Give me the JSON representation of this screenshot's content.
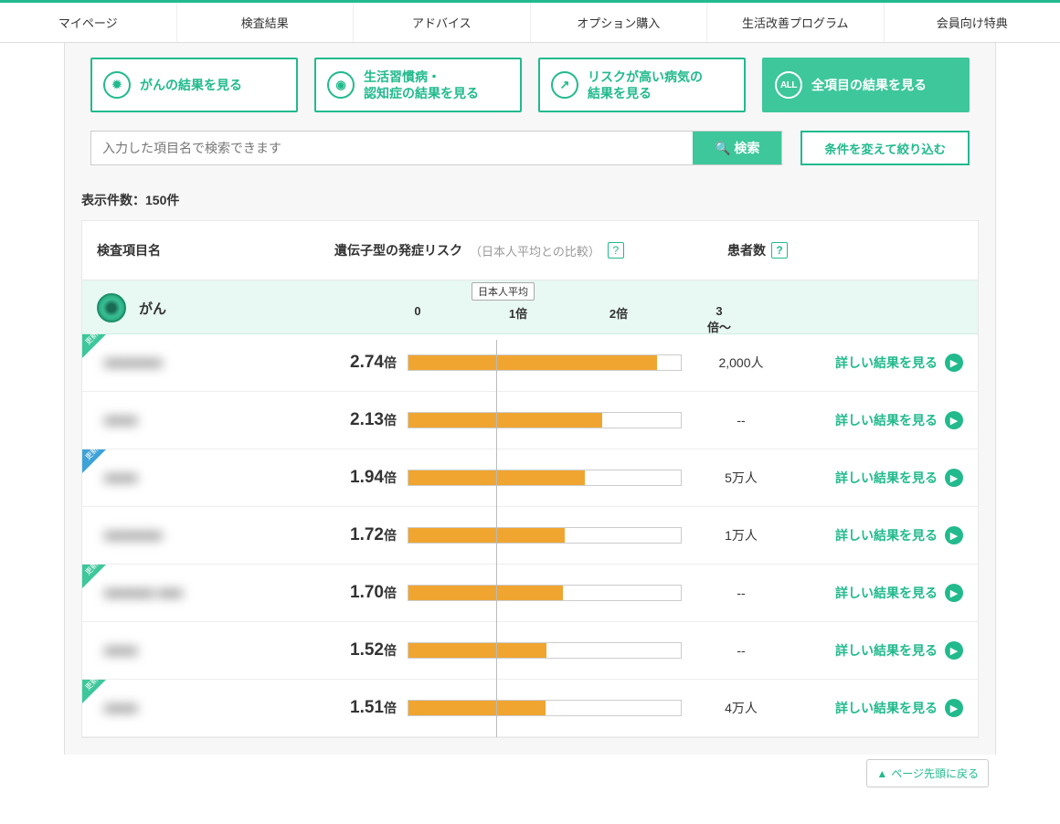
{
  "nav": [
    "マイページ",
    "検査結果",
    "アドバイス",
    "オプション購入",
    "生活改善プログラム",
    "会員向け特典"
  ],
  "buttons": {
    "cancer": "がんの結果を見る",
    "lifestyle": "生活習慣病・\n認知症の結果を見る",
    "highrisk": "リスクが高い病気の\n結果を見る",
    "all": "全項目の結果を見る",
    "search_placeholder": "入力した項目名で検索できます",
    "search": "検索",
    "filter": "条件を変えて絞り込む"
  },
  "count_label": "表示件数：150件",
  "header": {
    "name": "検査項目名",
    "risk": "遺伝子型の発症リスク",
    "risk_sub": "（日本人平均との比較）",
    "patients": "患者数"
  },
  "category": {
    "label": "がん",
    "axis_avg": "日本人平均",
    "ticks": [
      "0",
      "1倍",
      "2倍",
      "3倍〜"
    ]
  },
  "rows": [
    {
      "ribbon": "green",
      "name": "■■■■■■■",
      "val": "2.74",
      "bar": 0.913,
      "patients": "2,000人"
    },
    {
      "ribbon": null,
      "name": "■■■■",
      "val": "2.13",
      "bar": 0.71,
      "patients": "--"
    },
    {
      "ribbon": "blue",
      "name": "■■■■",
      "val": "1.94",
      "bar": 0.647,
      "patients": "5万人"
    },
    {
      "ribbon": null,
      "name": "■■■■■■■",
      "val": "1.72",
      "bar": 0.573,
      "patients": "1万人"
    },
    {
      "ribbon": "green",
      "name": "■■■■■■ ■■■",
      "val": "1.70",
      "bar": 0.567,
      "patients": "--"
    },
    {
      "ribbon": null,
      "name": "■■■■",
      "val": "1.52",
      "bar": 0.507,
      "patients": "--"
    },
    {
      "ribbon": "green",
      "name": "■■■■",
      "val": "1.51",
      "bar": 0.503,
      "patients": "4万人"
    }
  ],
  "detail_link": "詳しい結果を見る",
  "totop": "ページ先頭に戻る",
  "colors": {
    "accent": "#22ba8d",
    "accent_fill": "#3dc79a",
    "bar": "#f0a530",
    "blue": "#3da2d8"
  }
}
